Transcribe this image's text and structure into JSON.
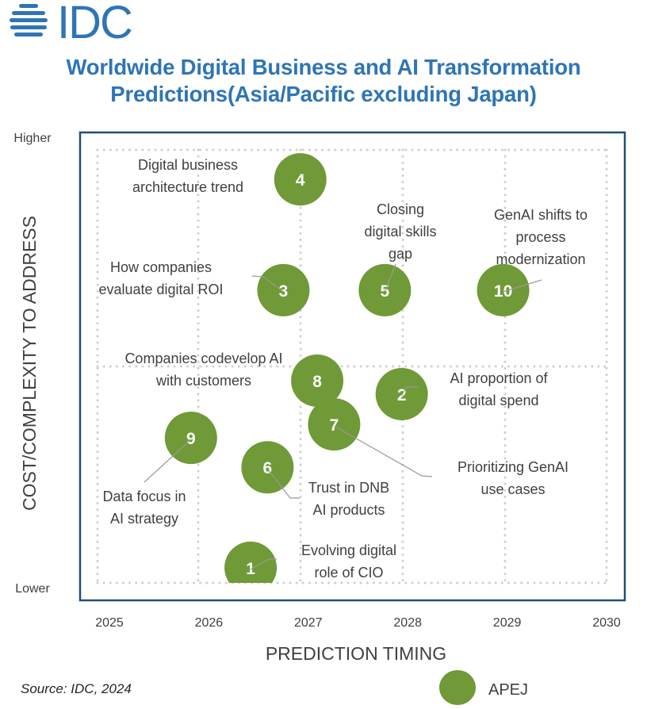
{
  "brand": {
    "logo_text": "IDC",
    "logo_icon": "globe-icon",
    "color": "#2e75b6"
  },
  "title": {
    "line1": "Worldwide Digital Business and AI Transformation",
    "line2": "Predictions(Asia/Pacific excluding Japan)"
  },
  "source": "Source: IDC, 2024",
  "colors": {
    "bubble": "#6f9a37",
    "frame": "#1f4e79",
    "grid": "#d0d0d0",
    "text": "#404040",
    "leader": "#999999"
  },
  "chart_data": {
    "type": "scatter",
    "title": "Worldwide Digital Business and AI Transformation Predictions(Asia/Pacific excluding Japan)",
    "xlabel": "PREDICTION TIMING",
    "ylabel": "COST/COMPLEXITY TO ADDRESS",
    "x_ticks": [
      "2025",
      "2026",
      "2027",
      "2028",
      "2029",
      "2030"
    ],
    "xlim": [
      2025,
      2030
    ],
    "ylim": [
      0,
      100
    ],
    "y_tick_labels": {
      "low": "Lower",
      "high": "Higher"
    },
    "grid": true,
    "legend": {
      "position": "bottom-right",
      "entries": [
        {
          "name": "APEJ",
          "marker": "circle"
        }
      ]
    },
    "series": [
      {
        "name": "APEJ",
        "points": [
          {
            "id": "1",
            "label": "Evolving digital role of CIO",
            "label_lines": [
              "Evolving digital",
              "role of CIO"
            ],
            "x": 2026.42,
            "y": 3.5
          },
          {
            "id": "2",
            "label": "AI proportion of digital spend",
            "label_lines": [
              "AI proportion of",
              "digital spend"
            ],
            "x": 2027.94,
            "y": 43.6
          },
          {
            "id": "3",
            "label": "How companies evaluate digital ROI",
            "label_lines": [
              "How companies",
              "evaluate digital ROI"
            ],
            "x": 2026.75,
            "y": 67.6
          },
          {
            "id": "4",
            "label": "Digital business architecture trend",
            "label_lines": [
              "Digital business",
              "architecture trend"
            ],
            "x": 2026.92,
            "y": 93.2
          },
          {
            "id": "5",
            "label": "Closing digital skills gap",
            "label_lines": [
              "Closing",
              "digital skills",
              "gap"
            ],
            "x": 2027.77,
            "y": 67.6
          },
          {
            "id": "6",
            "label": "Trust in DNB AI products",
            "label_lines": [
              "Trust in DNB",
              "AI products"
            ],
            "x": 2026.59,
            "y": 26.7
          },
          {
            "id": "7",
            "label": "Prioritizing GenAI use cases",
            "label_lines": [
              "Prioritizing GenAI",
              "use cases"
            ],
            "x": 2027.26,
            "y": 36.6
          },
          {
            "id": "8",
            "label": "Companies codevelop AI with customers",
            "label_lines": [
              "Companies codevelop AI",
              "with customers"
            ],
            "x": 2027.09,
            "y": 46.7
          },
          {
            "id": "9",
            "label": "Data focus in AI strategy",
            "label_lines": [
              "Data focus in",
              "AI strategy"
            ],
            "x": 2025.82,
            "y": 33.5
          },
          {
            "id": "10",
            "label": "GenAI shifts to process modernization",
            "label_lines": [
              "GenAI shifts to",
              "process",
              "modernization"
            ],
            "x": 2028.96,
            "y": 67.6
          }
        ]
      }
    ]
  }
}
